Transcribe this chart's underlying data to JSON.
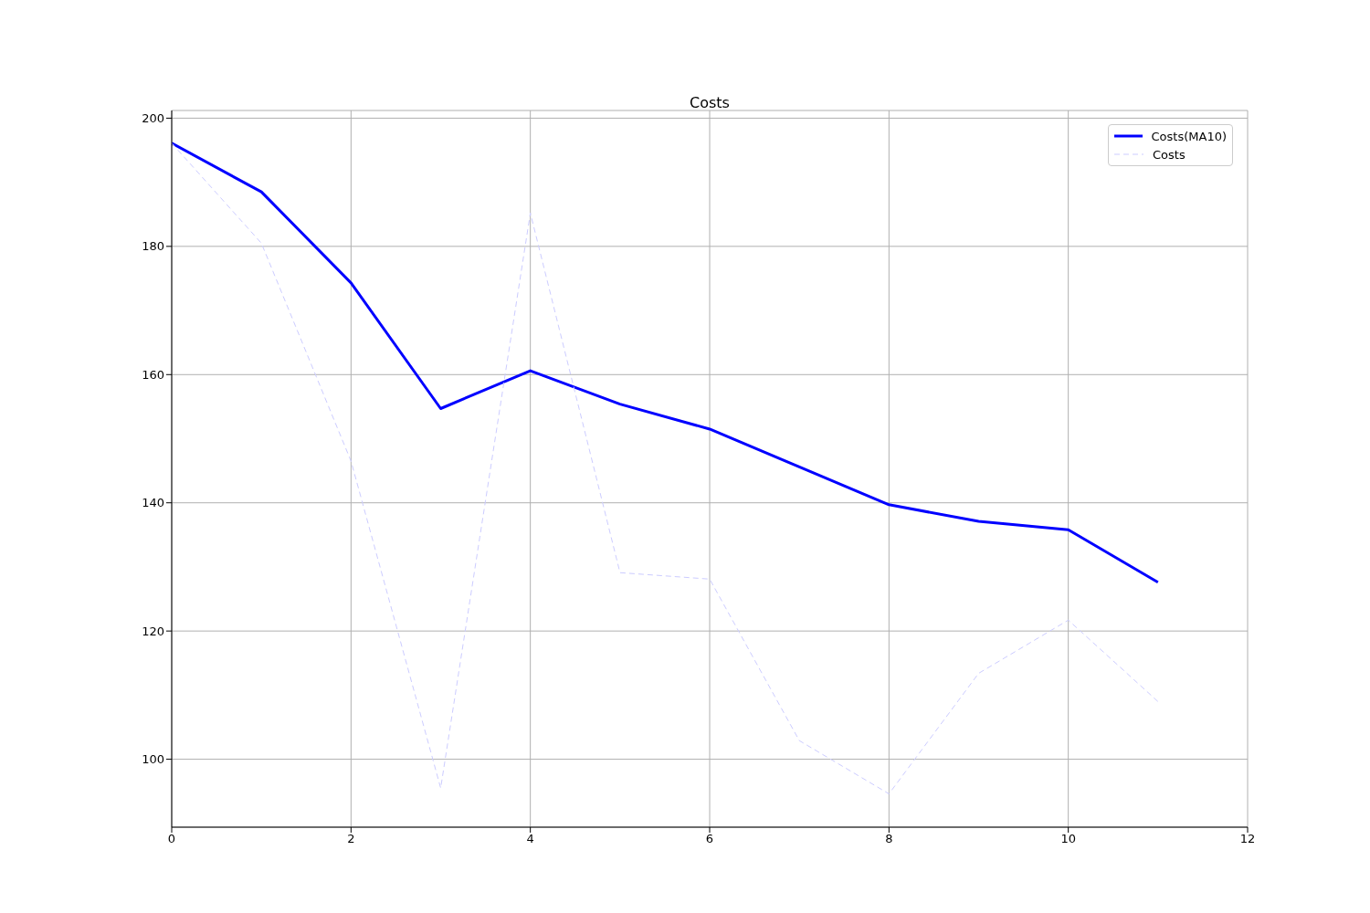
{
  "chart_data": {
    "type": "line",
    "title": "Costs",
    "x": [
      0,
      1,
      2,
      3,
      4,
      5,
      6,
      7,
      8,
      9,
      10,
      11
    ],
    "series": [
      {
        "name": "Costs(MA10)",
        "color": "#0000ff",
        "line_style": "solid",
        "values": [
          196.1,
          188.5,
          174.3,
          154.7,
          160.6,
          155.4,
          151.5,
          145.6,
          139.7,
          137.1,
          135.8,
          127.6
        ]
      },
      {
        "name": "Costs",
        "color": "#ccccff",
        "line_style": "dashed",
        "values": [
          196.1,
          180.5,
          146.5,
          95.5,
          185.2,
          129.1,
          128.1,
          102.9,
          94.6,
          113.4,
          121.7,
          109.0
        ]
      }
    ],
    "xlim": [
      0,
      12
    ],
    "xticks": [
      0,
      2,
      4,
      6,
      8,
      10,
      12
    ],
    "ylim": [
      89.4,
      201.2
    ],
    "yticks": [
      100,
      120,
      140,
      160,
      180,
      200
    ],
    "grid": true,
    "legend": "top right",
    "marker": "none"
  }
}
